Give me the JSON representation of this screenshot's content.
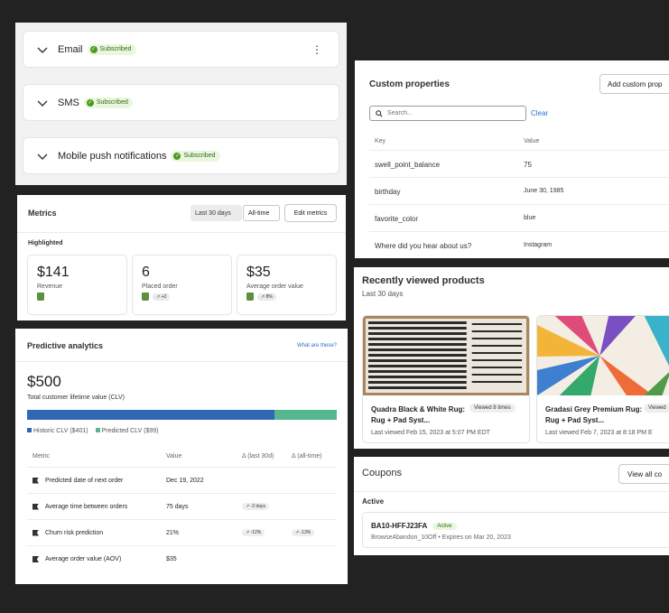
{
  "subscriptions": {
    "items": [
      {
        "label": "Email",
        "status": "Subscribed"
      },
      {
        "label": "SMS",
        "status": "Subscribed"
      },
      {
        "label": "Mobile push notifications",
        "status": "Subscribed"
      }
    ],
    "more_icon": "⋮"
  },
  "metrics": {
    "title": "Metrics",
    "range_last30": "Last 30 days",
    "range_all": "All-time",
    "edit_label": "Edit metrics",
    "highlighted": "Highlighted",
    "cards": [
      {
        "value": "$141",
        "label": "Revenue",
        "delta": ""
      },
      {
        "value": "6",
        "label": "Placed order",
        "delta": "↗ +2"
      },
      {
        "value": "$35",
        "label": "Average order value",
        "delta": "↗ 8%"
      }
    ]
  },
  "predictive": {
    "title": "Predictive analytics",
    "link": "What are these?",
    "clv_value": "$500",
    "clv_label": "Total customer lifetime value (CLV)",
    "historic_share": 0.8,
    "legend_historic": "Historic CLV ($401)",
    "legend_predicted": "Predicted CLV ($99)",
    "colors": {
      "historic": "#3068b6",
      "predicted": "#55b790"
    },
    "headers": {
      "metric": "Metric",
      "value": "Value",
      "d30": "Δ (last 30d)",
      "dall": "Δ (all-time)"
    },
    "rows": [
      {
        "metric": "Predicted date of next order",
        "value": "Dec 19, 2022",
        "d30": "",
        "dall": ""
      },
      {
        "metric": "Average time between orders",
        "value": "75 days",
        "d30": "↗ -2 days",
        "dall": ""
      },
      {
        "metric": "Churn risk prediction",
        "value": "21%",
        "d30": "↗ -12%",
        "dall": "↗ -13%"
      },
      {
        "metric": "Average order value (AOV)",
        "value": "$35",
        "d30": "",
        "dall": ""
      }
    ]
  },
  "custom": {
    "title": "Custom properties",
    "add_label": "Add custom prop",
    "search_placeholder": "Search...",
    "clear_label": "Clear",
    "key_header": "Key",
    "value_header": "Value",
    "rows": [
      {
        "key": "swell_point_balance",
        "value": "75"
      },
      {
        "key": "birthday",
        "value": "June 30, 1985"
      },
      {
        "key": "favorite_color",
        "value": "blue"
      },
      {
        "key": "Where did you hear about us?",
        "value": "Instagram"
      }
    ]
  },
  "recent": {
    "title": "Recently viewed products",
    "subtitle": "Last 30 days",
    "products": [
      {
        "name": "Quadra Black & White Rug: Rug + Pad Syst...",
        "viewed": "Viewed 8 times",
        "last": "Last viewed Feb 15, 2023 at 5:07 PM EDT"
      },
      {
        "name": "Gradasi Grey Premium Rug: Rug + Pad Syst...",
        "viewed": "Viewed",
        "last": "Last viewed Feb 7, 2023 at 8:18 PM E"
      }
    ]
  },
  "coupons": {
    "title": "Coupons",
    "view_all": "View all co",
    "active_label": "Active",
    "code": "BA10-HFFJ23FA",
    "status": "Active",
    "meta": "BrowseAbandon_10Off • Expires on Mar 20, 2023"
  }
}
